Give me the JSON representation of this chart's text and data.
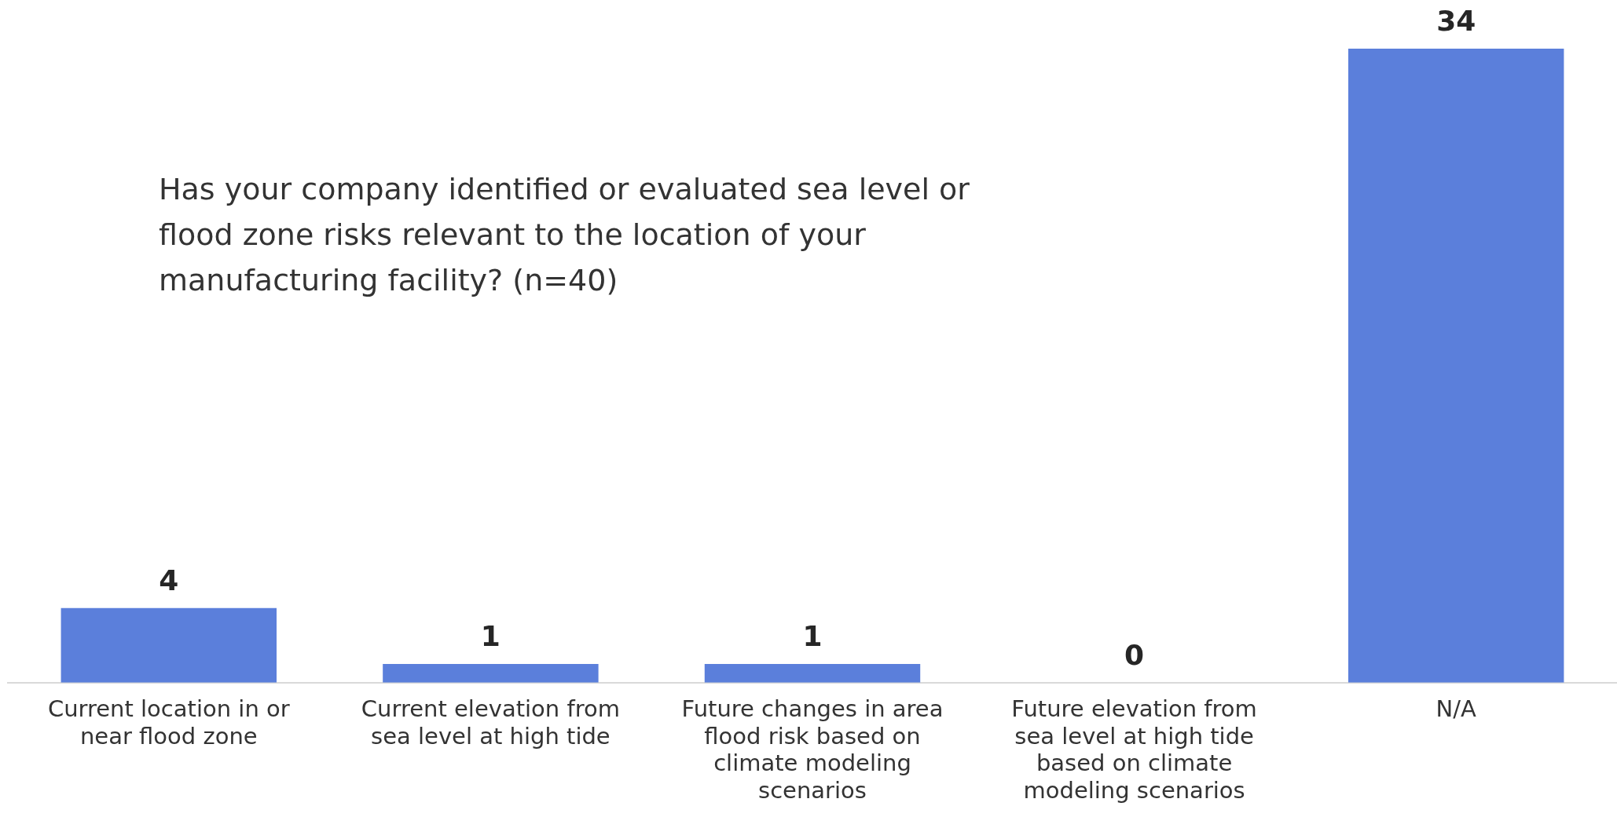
{
  "chart_data": {
    "type": "bar",
    "title": "Has your company identified or evaluated sea level or flood zone risks relevant to the location of your manufacturing facility? (n=40)",
    "categories": [
      "Current location in or near flood zone",
      "Current elevation from sea level at high tide",
      "Future changes in area flood risk based on climate modeling scenarios",
      "Future elevation from sea level at high tide based on climate modeling scenarios",
      "N/A"
    ],
    "values": [
      4,
      1,
      1,
      0,
      34
    ],
    "color": "#5b7fdb",
    "data_labels": true,
    "grid": false,
    "legend": false
  }
}
